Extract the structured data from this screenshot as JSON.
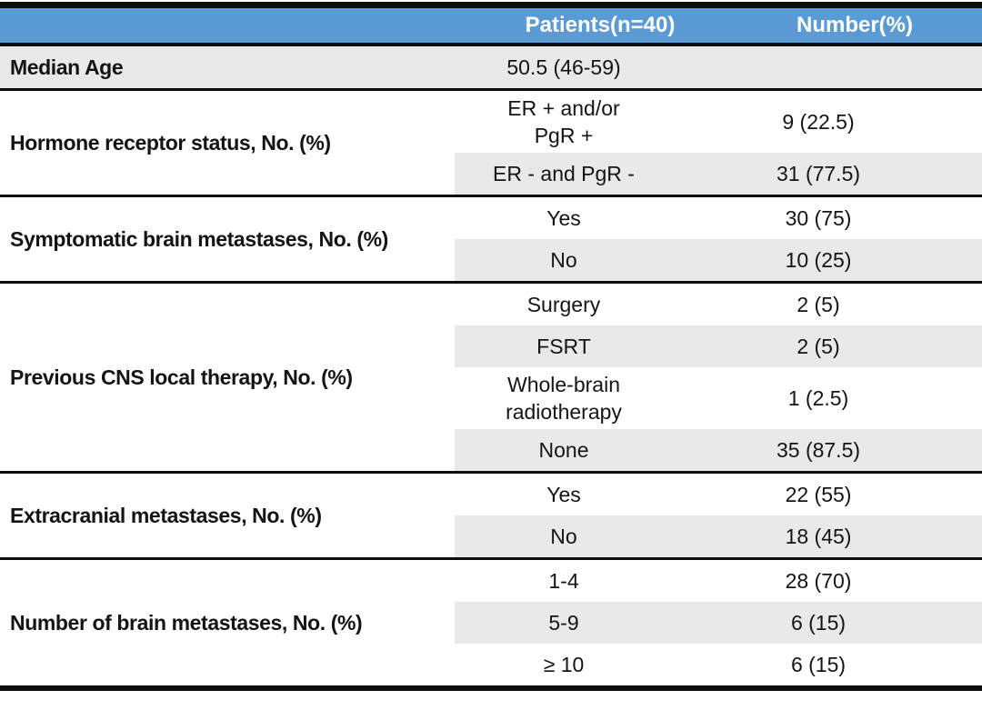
{
  "table": {
    "colors": {
      "header_bg": "#5B9BD5",
      "header_text": "#FFFFFF",
      "row_shade": "#E9E9E9",
      "rule": "#0D0D0D"
    },
    "header": {
      "col_patients": "Patients(n=40)",
      "col_number": "Number(%)"
    },
    "groups": [
      {
        "label": "Median Age",
        "full_shade": true,
        "rows": [
          {
            "category": "50.5 (46-59)",
            "value": ""
          }
        ]
      },
      {
        "label": "Hormone receptor status, No. (%)",
        "full_shade": false,
        "rows": [
          {
            "category": "ER + and/or\nPgR +",
            "value": "9 (22.5)"
          },
          {
            "category": "ER - and PgR -",
            "value": "31 (77.5)"
          }
        ]
      },
      {
        "label": "Symptomatic brain metastases, No. (%)",
        "full_shade": false,
        "rows": [
          {
            "category": "Yes",
            "value": "30 (75)"
          },
          {
            "category": "No",
            "value": "10 (25)"
          }
        ]
      },
      {
        "label": "Previous CNS local therapy, No. (%)",
        "full_shade": false,
        "rows": [
          {
            "category": "Surgery",
            "value": "2 (5)"
          },
          {
            "category": "FSRT",
            "value": "2 (5)"
          },
          {
            "category": "Whole-brain\nradiotherapy",
            "value": "1 (2.5)"
          },
          {
            "category": "None",
            "value": "35 (87.5)"
          }
        ]
      },
      {
        "label": "Extracranial metastases, No. (%)",
        "full_shade": false,
        "rows": [
          {
            "category": "Yes",
            "value": "22 (55)"
          },
          {
            "category": "No",
            "value": "18 (45)"
          }
        ]
      },
      {
        "label": "Number of brain metastases, No. (%)",
        "full_shade": false,
        "rows": [
          {
            "category": "1-4",
            "value": "28 (70)"
          },
          {
            "category": "5-9",
            "value": "6 (15)"
          },
          {
            "category": "≥ 10",
            "value": "6 (15)"
          }
        ]
      }
    ]
  }
}
